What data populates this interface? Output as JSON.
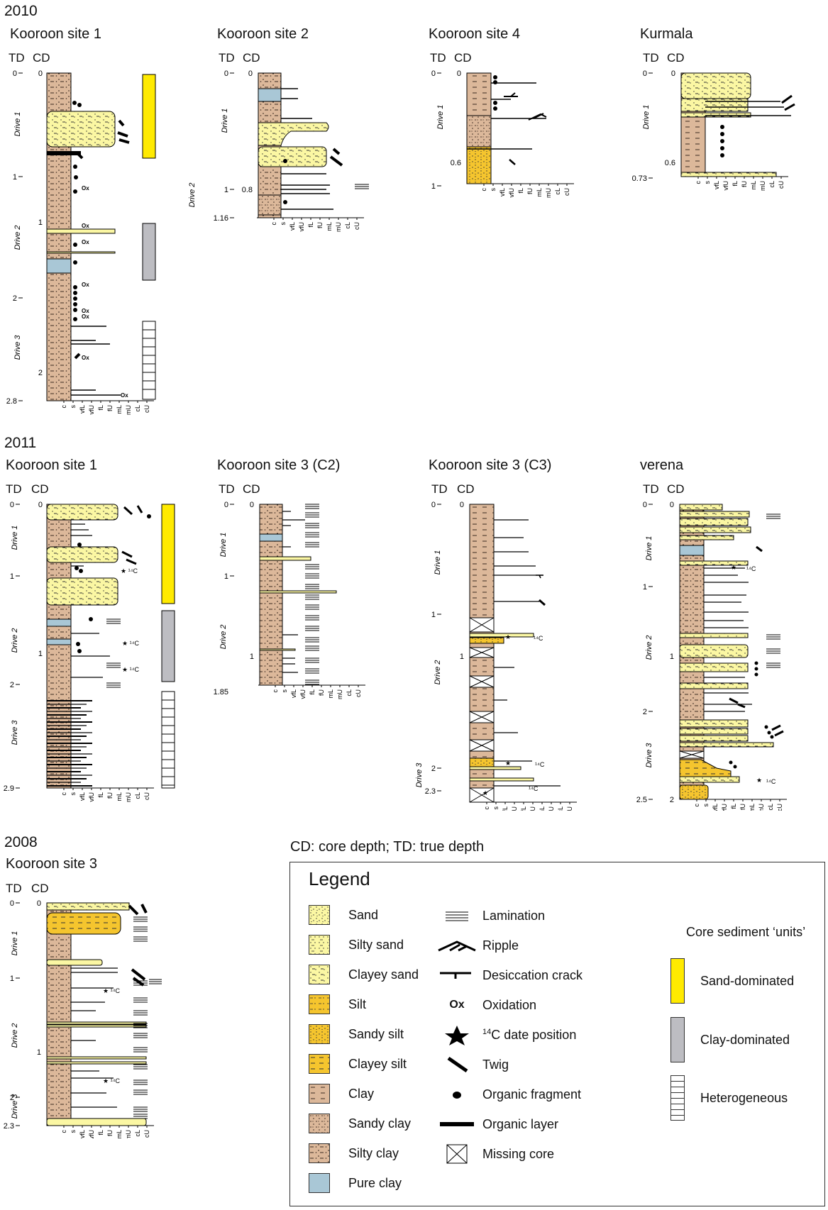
{
  "note": "CD: core depth; TD: true depth",
  "axis_header": {
    "td": "TD",
    "cd": "CD"
  },
  "grain_labels": [
    "c",
    "s",
    "vfL",
    "vfU",
    "fL",
    "fU",
    "mL",
    "mU",
    "cL",
    "cU"
  ],
  "panels": [
    {
      "year": "2010",
      "site": "Kooroon site 1",
      "drives": [
        "Drive 1",
        "Drive 2",
        "Drive 3"
      ],
      "td_ticks": [
        "0",
        "1",
        "2",
        "2.8"
      ],
      "cd_ticks": [
        "0",
        "1",
        "2"
      ],
      "marks": [
        "Ox",
        "Ox",
        "Ox",
        "Ox",
        "Ox",
        "Ox",
        "Ox",
        "Ox"
      ]
    },
    {
      "year": "",
      "site": "Kooroon site 2",
      "drives": [
        "Drive 1",
        "Drive 2"
      ],
      "td_ticks": [
        "0",
        "1",
        "1.16"
      ],
      "cd_ticks": [
        "0",
        "0.8"
      ],
      "marks": []
    },
    {
      "year": "",
      "site": "Kooroon site 4",
      "drives": [
        "Drive 1"
      ],
      "td_ticks": [
        "0",
        "1"
      ],
      "cd_ticks": [
        "0",
        "0.6"
      ],
      "marks": []
    },
    {
      "year": "",
      "site": "Kurmala",
      "drives": [
        "Drive 1"
      ],
      "td_ticks": [
        "0",
        "0.73"
      ],
      "cd_ticks": [
        "0",
        "0.6"
      ],
      "marks": []
    },
    {
      "year": "2011",
      "site": "Kooroon site 1",
      "drives": [
        "Drive 1",
        "Drive 2",
        "Drive 3"
      ],
      "td_ticks": [
        "0",
        "1",
        "2",
        "2.9"
      ],
      "cd_ticks": [
        "0",
        "1"
      ],
      "marks": [
        "¹⁴C",
        "¹⁴C",
        "¹⁴C"
      ]
    },
    {
      "year": "",
      "site": "Kooroon site 3 (C2)",
      "drives": [
        "Drive 1",
        "Drive 2"
      ],
      "td_ticks": [
        "0",
        "1",
        "1.85"
      ],
      "cd_ticks": [
        "0",
        "1"
      ],
      "marks": []
    },
    {
      "year": "",
      "site": "Kooroon site 3 (C3)",
      "drives": [
        "Drive 1",
        "Drive 2",
        "Drive 3"
      ],
      "td_ticks": [
        "0",
        "1",
        "2",
        "2.3"
      ],
      "cd_ticks": [
        "0",
        "1"
      ],
      "marks": [
        "¹⁴C",
        "¹⁴C",
        "¹⁴C"
      ]
    },
    {
      "year": "",
      "site": "verena",
      "drives": [
        "Drive 1",
        "Drive 2",
        "Drive 3"
      ],
      "td_ticks": [
        "0",
        "1",
        "2",
        "2.5"
      ],
      "cd_ticks": [
        "0",
        "1",
        "2"
      ],
      "marks": [
        "¹⁴C",
        "¹⁴C"
      ]
    },
    {
      "year": "2008",
      "site": "Kooroon site 3",
      "drives": [
        "Drive 1",
        "Drive 2",
        "Drive 3"
      ],
      "td_ticks": [
        "0",
        "1",
        "2",
        "2.3"
      ],
      "cd_ticks": [
        "0",
        "1"
      ],
      "marks": [
        "¹⁴C",
        "¹⁴C"
      ]
    }
  ],
  "legend": {
    "title": "Legend",
    "lithology": [
      {
        "label": "Sand",
        "pattern": "sand"
      },
      {
        "label": "Silty sand",
        "pattern": "siltysand"
      },
      {
        "label": "Clayey sand",
        "pattern": "clayeysand"
      },
      {
        "label": "Silt",
        "pattern": "silt"
      },
      {
        "label": "Sandy silt",
        "pattern": "sandysilt"
      },
      {
        "label": "Clayey silt",
        "pattern": "clayeysilt"
      },
      {
        "label": "Clay",
        "pattern": "clay"
      },
      {
        "label": "Sandy clay",
        "pattern": "sandyclay"
      },
      {
        "label": "Silty clay",
        "pattern": "siltyclay"
      },
      {
        "label": "Pure clay",
        "pattern": "pureclay"
      }
    ],
    "symbols": [
      {
        "label": "Lamination",
        "icon": "lamination-icon"
      },
      {
        "label": "Ripple",
        "icon": "ripple-icon"
      },
      {
        "label": "Desiccation crack",
        "icon": "desiccation-crack-icon"
      },
      {
        "label": "Oxidation",
        "icon": "oxidation-icon",
        "glyph": "Ox"
      },
      {
        "label": "C date position",
        "sup": "14",
        "icon": "star-icon"
      },
      {
        "label": "Twig",
        "icon": "twig-icon"
      },
      {
        "label": "Organic fragment",
        "icon": "organic-fragment-icon"
      },
      {
        "label": "Organic layer",
        "icon": "organic-layer-icon"
      },
      {
        "label": "Missing core",
        "icon": "missing-core-icon"
      }
    ],
    "units_title": "Core sediment ‘units’",
    "units": [
      {
        "label": "Sand-dominated",
        "color": "#ffea00"
      },
      {
        "label": "Clay-dominated",
        "color": "#bdbdc2"
      },
      {
        "label": "Heterogeneous",
        "color": "#ffffff"
      }
    ]
  },
  "colors": {
    "clay": "#dcb89a",
    "sand": "#fbf7a3",
    "silt": "#f5c52e",
    "pureclay": "#a9c7d6",
    "sandunit": "#ffea00",
    "clayunit": "#bdbdc2"
  }
}
